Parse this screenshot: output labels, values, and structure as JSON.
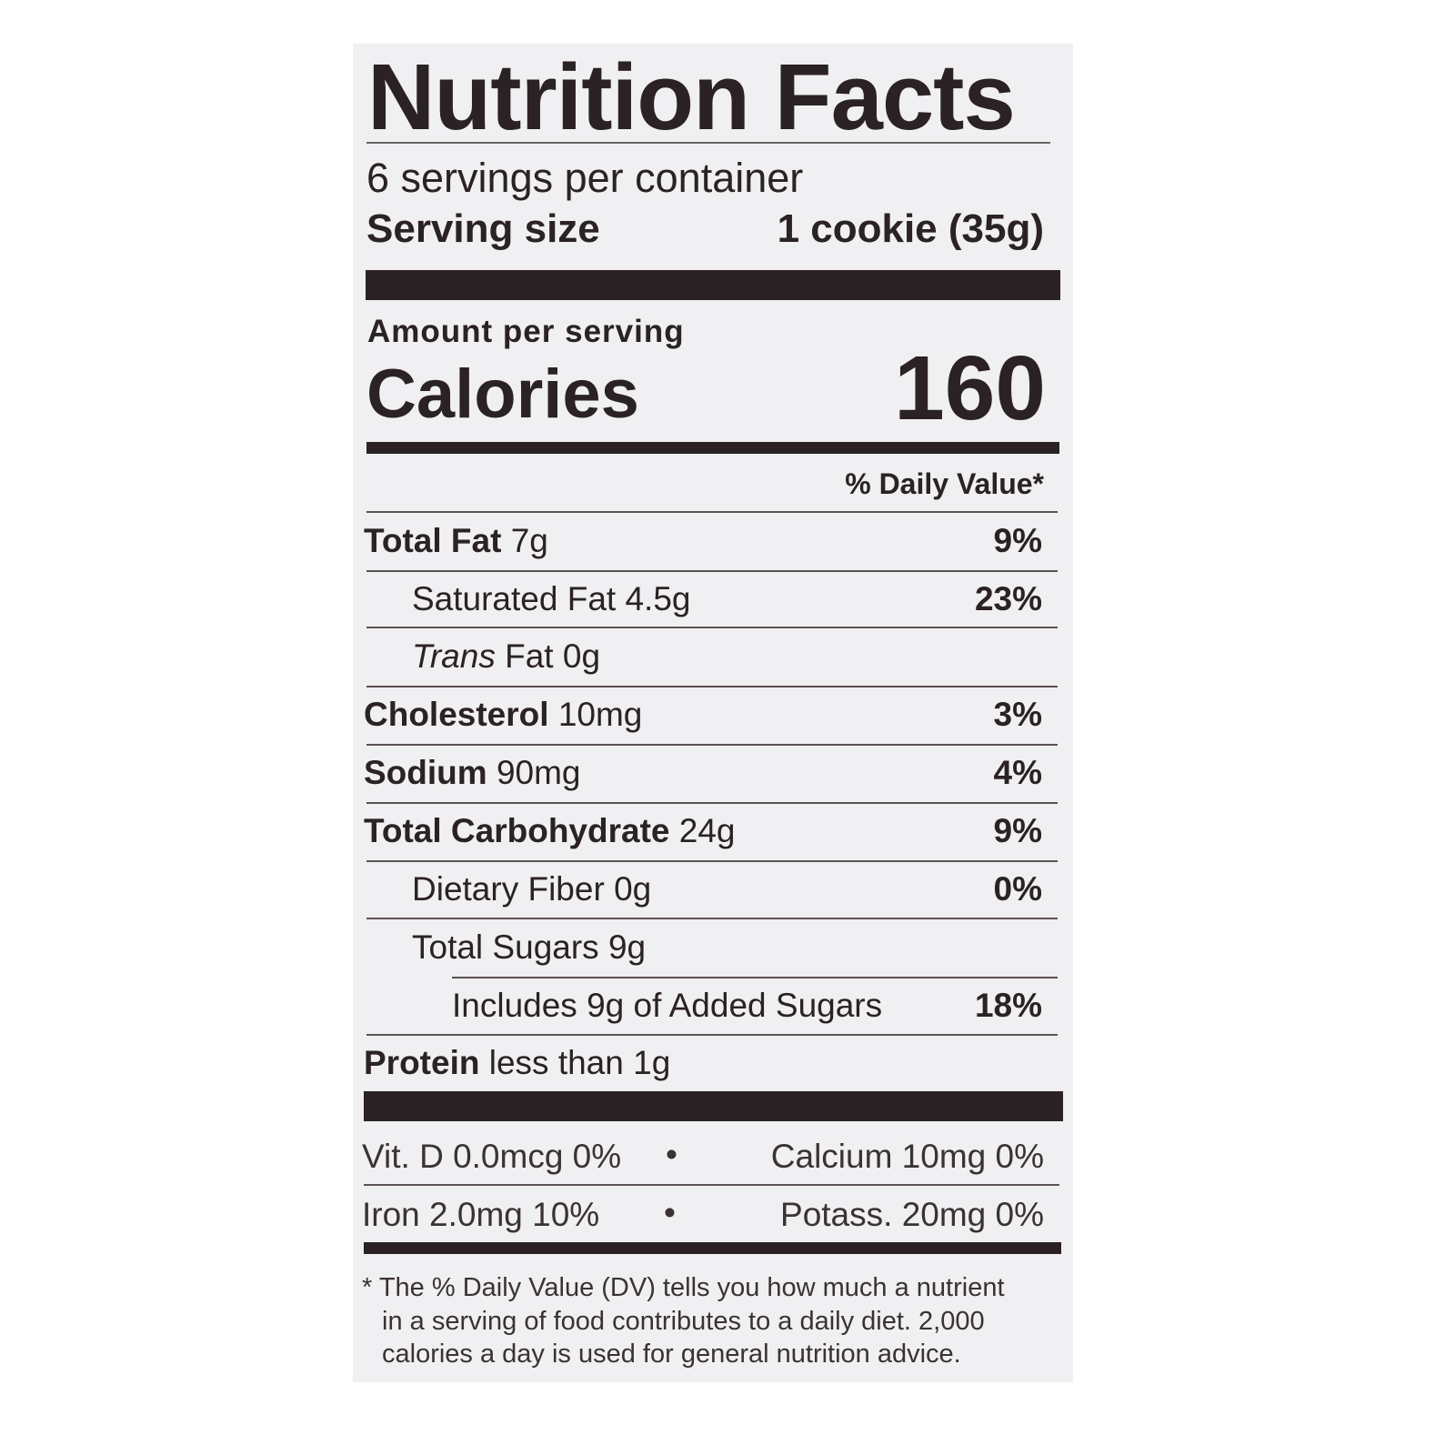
{
  "label": {
    "title": "Nutrition Facts",
    "servings_per_container": "6 servings per container",
    "serving_size_label": "Serving size",
    "serving_size_value": "1 cookie (35g)",
    "amount_per_serving": "Amount per serving",
    "calories_label": "Calories",
    "calories_value": "160",
    "daily_value_header": "% Daily Value*",
    "nutrients": [
      {
        "name": "Total Fat",
        "amount": "7g",
        "dv": "9%",
        "bold": true,
        "indent": 0
      },
      {
        "name": "Saturated Fat",
        "amount": "4.5g",
        "dv": "23%",
        "bold": false,
        "indent": 1
      },
      {
        "name": "Trans",
        "name_suffix": "Fat",
        "amount": "0g",
        "dv": "",
        "bold": false,
        "indent": 1,
        "italic_prefix": true
      },
      {
        "name": "Cholesterol",
        "amount": "10mg",
        "dv": "3%",
        "bold": true,
        "indent": 0
      },
      {
        "name": "Sodium",
        "amount": "90mg",
        "dv": "4%",
        "bold": true,
        "indent": 0
      },
      {
        "name": "Total Carbohydrate",
        "amount": "24g",
        "dv": "9%",
        "bold": true,
        "indent": 0
      },
      {
        "name": "Dietary Fiber",
        "amount": "0g",
        "dv": "0%",
        "bold": false,
        "indent": 1
      },
      {
        "name": "Total Sugars",
        "amount": "9g",
        "dv": "",
        "bold": false,
        "indent": 1
      },
      {
        "name": "Includes 9g of Added Sugars",
        "amount": "",
        "dv": "18%",
        "bold": false,
        "indent": 2
      },
      {
        "name": "Protein",
        "amount": "less than 1g",
        "dv": "",
        "bold": true,
        "indent": 0
      }
    ],
    "vitamins": {
      "row1_left": "Vit. D 0.0mcg 0%",
      "row1_sep": "•",
      "row1_right": "Calcium 10mg 0%",
      "row2_left": "Iron 2.0mg 10%",
      "row2_sep": "•",
      "row2_right": "Potass. 20mg 0%"
    },
    "footnote": [
      "* The % Daily Value (DV) tells you how much a nutrient",
      "in a serving of food contributes to a daily diet. 2,000",
      "calories a day is used for general nutrition advice."
    ]
  },
  "colors": {
    "panel": "#f0eff1",
    "ink": "#2a2224"
  }
}
